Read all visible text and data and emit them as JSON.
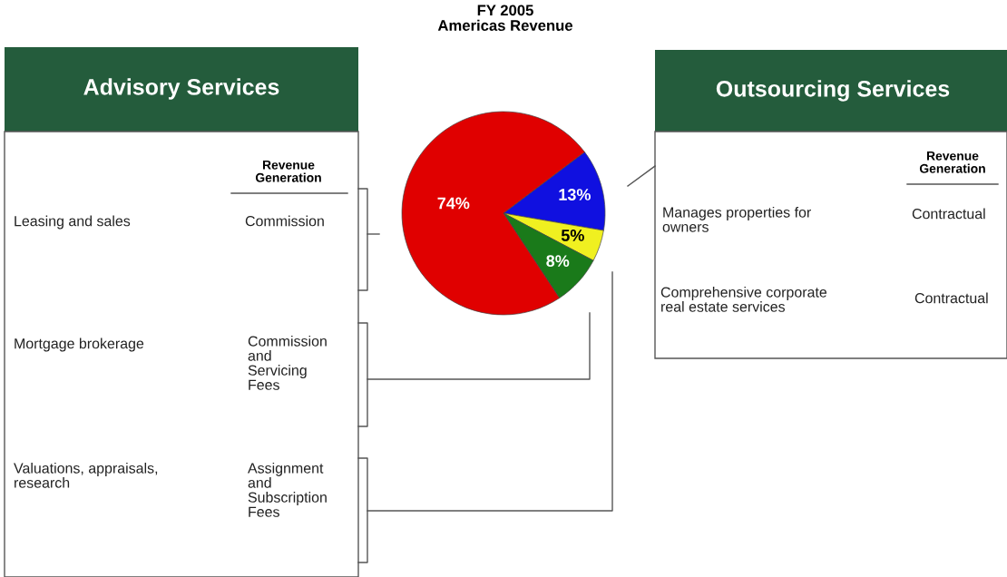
{
  "chart_data": {
    "type": "pie",
    "title": "FY 2005\nAmericas Revenue",
    "categories": [
      null,
      null,
      null,
      null
    ],
    "values": [
      13,
      5,
      8,
      74
    ],
    "colors": [
      "#1010e0",
      "#f0f020",
      "#1a7a1a",
      "#e00000"
    ],
    "value_labels": [
      "13%",
      "5%",
      "8%",
      "74%"
    ],
    "annotations": [
      "Advisory Services",
      "Revenue\nGeneration",
      "Leasing and sales",
      "Commission",
      "Mortgage brokerage",
      "Commission\nand\nServicing\nFees",
      "Valuations, appraisals,\nresearch",
      "Assignment\nand\nSubscription\nFees",
      "Outsourcing Services",
      "Revenue\nGeneration",
      "Manages properties for\nowners",
      "Contractual",
      "Comprehensive corporate\nreal estate services",
      "Contractual"
    ]
  }
}
